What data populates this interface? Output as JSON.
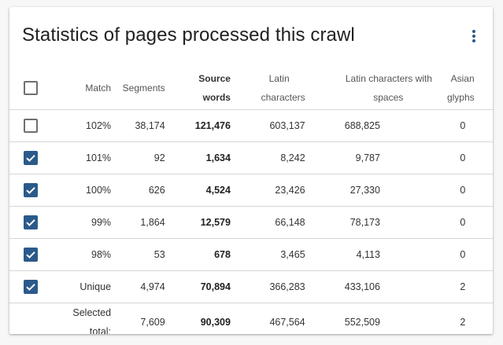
{
  "card": {
    "title": "Statistics of pages processed this crawl"
  },
  "colors": {
    "checkbox_checked": "#2b5a8a",
    "menu_icon": "#2b5a8a"
  },
  "header": {
    "select_all_checked": false,
    "match": "Match",
    "segments": "Segments",
    "source_words_line1": "Source",
    "source_words_line2": "words",
    "latin_line1": "Latin",
    "latin_line2": "characters",
    "latin_spaces_line1": "Latin characters with",
    "latin_spaces_line2": "spaces",
    "asian_line1": "Asian",
    "asian_line2": "glyphs"
  },
  "rows": [
    {
      "checked": false,
      "match": "102%",
      "segments": "38,174",
      "source_words": "121,476",
      "latin": "603,137",
      "latin_spaces": "688,825",
      "asian": "0"
    },
    {
      "checked": true,
      "match": "101%",
      "segments": "92",
      "source_words": "1,634",
      "latin": "8,242",
      "latin_spaces": "9,787",
      "asian": "0"
    },
    {
      "checked": true,
      "match": "100%",
      "segments": "626",
      "source_words": "4,524",
      "latin": "23,426",
      "latin_spaces": "27,330",
      "asian": "0"
    },
    {
      "checked": true,
      "match": "99%",
      "segments": "1,864",
      "source_words": "12,579",
      "latin": "66,148",
      "latin_spaces": "78,173",
      "asian": "0"
    },
    {
      "checked": true,
      "match": "98%",
      "segments": "53",
      "source_words": "678",
      "latin": "3,465",
      "latin_spaces": "4,113",
      "asian": "0"
    },
    {
      "checked": true,
      "match": "Unique",
      "segments": "4,974",
      "source_words": "70,894",
      "latin": "366,283",
      "latin_spaces": "433,106",
      "asian": "2"
    }
  ],
  "total": {
    "label_line1": "Selected",
    "label_line2": "total:",
    "segments": "7,609",
    "source_words": "90,309",
    "latin": "467,564",
    "latin_spaces": "552,509",
    "asian": "2"
  }
}
